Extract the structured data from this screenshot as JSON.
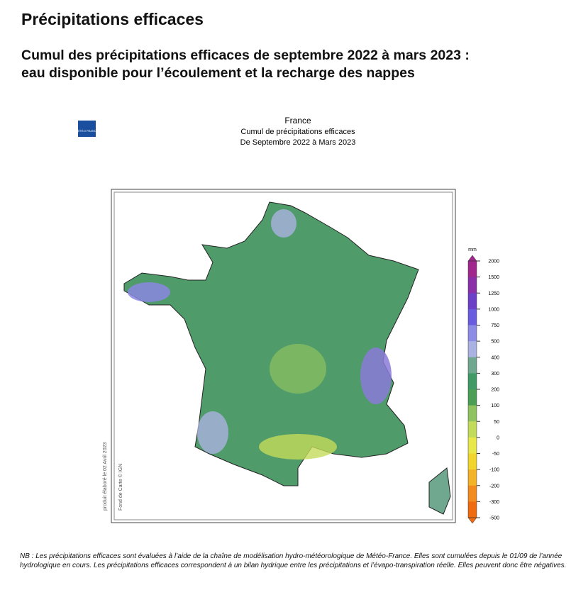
{
  "header": {
    "title": "Précipitations efficaces",
    "subtitle_lines": [
      "Cumul des précipitations efficaces de septembre 2022 à mars 2023 :",
      "eau disponible pour l’écoulement et la recharge des nappes"
    ]
  },
  "figure": {
    "logo": "MÉTÉO FRANCE",
    "title_lines": [
      "France",
      "Cumul de précipitations efficaces",
      "De Septembre 2022 à Mars 2023"
    ],
    "side_notes": [
      "produit élaboré le 02 Avril 2023",
      "Fond de Carte © IGN"
    ],
    "legend": {
      "unit": "mm",
      "levels": [
        2000,
        1500,
        1250,
        1000,
        750,
        500,
        400,
        300,
        200,
        100,
        50,
        0,
        -50,
        -100,
        -200,
        -300,
        -500
      ],
      "colors": [
        "#a0288c",
        "#8b2fa8",
        "#6c3fc9",
        "#6a5ce0",
        "#8c8ce6",
        "#a9b2e0",
        "#6fa88f",
        "#3f9a66",
        "#4a9f55",
        "#8fc35f",
        "#c3db5a",
        "#e8e84a",
        "#f2d52c",
        "#f2b326",
        "#f28a1e",
        "#f06a10"
      ]
    }
  },
  "note": "NB : Les précipitations efficaces sont évaluées à l’aide de la chaîne de modélisation hydro-météorologique de Météo-France. Elles sont cumulées depuis le 01/09 de l’année hydrologique en cours. Les précipitations efficaces correspondent à un bilan hydrique entre les précipitations et l’évapo-transpiration réelle. Elles peuvent donc être négatives."
}
